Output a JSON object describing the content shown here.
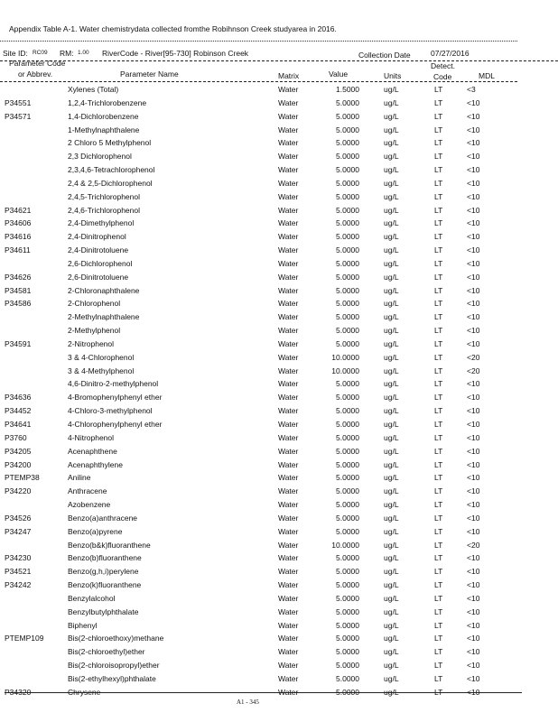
{
  "title": "Appendix Table A-1. Water chemistrydata collected fromthe Robihnson Creek studyarea in 2016.",
  "site": {
    "site_id_label": "Site ID:",
    "site_id": "RC09",
    "rm_label": "RM:",
    "rm": "1.00",
    "river_code": "RiverCode - River[95-730] Robinson Creek",
    "collection_date_label": "Collection Date",
    "collection_date": "07/27/2016"
  },
  "headers": {
    "code_line1": "Parameter Code",
    "code_line2": "or Abbrev.",
    "name": "Parameter Name",
    "matrix": "Matrix",
    "value": "Value",
    "units": "Units",
    "detect_line1": "Detect.",
    "detect_line2": "Code",
    "mdl": "MDL"
  },
  "rows": [
    [
      "",
      "Xylenes (Total)",
      "Water",
      "1.5000",
      "ug/L",
      "LT",
      "<3"
    ],
    [
      "P34551",
      "1,2,4-Trichlorobenzene",
      "Water",
      "5.0000",
      "ug/L",
      "LT",
      "<10"
    ],
    [
      "P34571",
      "1,4-Dichlorobenzene",
      "Water",
      "5.0000",
      "ug/L",
      "LT",
      "<10"
    ],
    [
      "",
      "1-Methylnaphthalene",
      "Water",
      "5.0000",
      "ug/L",
      "LT",
      "<10"
    ],
    [
      "",
      "2 Chloro 5 Methylphenol",
      "Water",
      "5.0000",
      "ug/L",
      "LT",
      "<10"
    ],
    [
      "",
      "2,3 Dichlorophenol",
      "Water",
      "5.0000",
      "ug/L",
      "LT",
      "<10"
    ],
    [
      "",
      "2,3,4,6-Tetrachlorophenol",
      "Water",
      "5.0000",
      "ug/L",
      "LT",
      "<10"
    ],
    [
      "",
      "2,4 & 2,5-Dichlorophenol",
      "Water",
      "5.0000",
      "ug/L",
      "LT",
      "<10"
    ],
    [
      "",
      "2,4,5-Trichlorophenol",
      "Water",
      "5.0000",
      "ug/L",
      "LT",
      "<10"
    ],
    [
      "P34621",
      "2,4,6-Trichlorophenol",
      "Water",
      "5.0000",
      "ug/L",
      "LT",
      "<10"
    ],
    [
      "P34606",
      "2,4-Dimethylphenol",
      "Water",
      "5.0000",
      "ug/L",
      "LT",
      "<10"
    ],
    [
      "P34616",
      "2,4-Dinitrophenol",
      "Water",
      "5.0000",
      "ug/L",
      "LT",
      "<10"
    ],
    [
      "P34611",
      "2,4-Dinitrotoluene",
      "Water",
      "5.0000",
      "ug/L",
      "LT",
      "<10"
    ],
    [
      "",
      "2,6-Dichlorophenol",
      "Water",
      "5.0000",
      "ug/L",
      "LT",
      "<10"
    ],
    [
      "P34626",
      "2,6-Dinitrotoluene",
      "Water",
      "5.0000",
      "ug/L",
      "LT",
      "<10"
    ],
    [
      "P34581",
      "2-Chloronaphthalene",
      "Water",
      "5.0000",
      "ug/L",
      "LT",
      "<10"
    ],
    [
      "P34586",
      "2-Chlorophenol",
      "Water",
      "5.0000",
      "ug/L",
      "LT",
      "<10"
    ],
    [
      "",
      "2-Methylnaphthalene",
      "Water",
      "5.0000",
      "ug/L",
      "LT",
      "<10"
    ],
    [
      "",
      "2-Methylphenol",
      "Water",
      "5.0000",
      "ug/L",
      "LT",
      "<10"
    ],
    [
      "P34591",
      "2-Nitrophenol",
      "Water",
      "5.0000",
      "ug/L",
      "LT",
      "<10"
    ],
    [
      "",
      "3 & 4-Chlorophenol",
      "Water",
      "10.0000",
      "ug/L",
      "LT",
      "<20"
    ],
    [
      "",
      "3 & 4-Methylphenol",
      "Water",
      "10.0000",
      "ug/L",
      "LT",
      "<20"
    ],
    [
      "",
      "4,6-Dinitro-2-methylphenol",
      "Water",
      "5.0000",
      "ug/L",
      "LT",
      "<10"
    ],
    [
      "P34636",
      "4-Bromophenylphenyl ether",
      "Water",
      "5.0000",
      "ug/L",
      "LT",
      "<10"
    ],
    [
      "P34452",
      "4-Chloro-3-methylphenol",
      "Water",
      "5.0000",
      "ug/L",
      "LT",
      "<10"
    ],
    [
      "P34641",
      "4-Chlorophenylphenyl ether",
      "Water",
      "5.0000",
      "ug/L",
      "LT",
      "<10"
    ],
    [
      "P3760",
      "4-Nitrophenol",
      "Water",
      "5.0000",
      "ug/L",
      "LT",
      "<10"
    ],
    [
      "P34205",
      "Acenaphthene",
      "Water",
      "5.0000",
      "ug/L",
      "LT",
      "<10"
    ],
    [
      "P34200",
      "Acenaphthylene",
      "Water",
      "5.0000",
      "ug/L",
      "LT",
      "<10"
    ],
    [
      "PTEMP38",
      "Aniline",
      "Water",
      "5.0000",
      "ug/L",
      "LT",
      "<10"
    ],
    [
      "P34220",
      "Anthracene",
      "Water",
      "5.0000",
      "ug/L",
      "LT",
      "<10"
    ],
    [
      "",
      "Azobenzene",
      "Water",
      "5.0000",
      "ug/L",
      "LT",
      "<10"
    ],
    [
      "P34526",
      "Benzo(a)anthracene",
      "Water",
      "5.0000",
      "ug/L",
      "LT",
      "<10"
    ],
    [
      "P34247",
      "Benzo(a)pyrene",
      "Water",
      "5.0000",
      "ug/L",
      "LT",
      "<10"
    ],
    [
      "",
      "Benzo(b&k)fluoranthene",
      "Water",
      "10.0000",
      "ug/L",
      "LT",
      "<20"
    ],
    [
      "P34230",
      "Benzo(b)fluoranthene",
      "Water",
      "5.0000",
      "ug/L",
      "LT",
      "<10"
    ],
    [
      "P34521",
      "Benzo(g,h,i)perylene",
      "Water",
      "5.0000",
      "ug/L",
      "LT",
      "<10"
    ],
    [
      "P34242",
      "Benzo(k)fluoranthene",
      "Water",
      "5.0000",
      "ug/L",
      "LT",
      "<10"
    ],
    [
      "",
      "Benzylalcohol",
      "Water",
      "5.0000",
      "ug/L",
      "LT",
      "<10"
    ],
    [
      "",
      "Benzylbutylphthalate",
      "Water",
      "5.0000",
      "ug/L",
      "LT",
      "<10"
    ],
    [
      "",
      "Biphenyl",
      "Water",
      "5.0000",
      "ug/L",
      "LT",
      "<10"
    ],
    [
      "PTEMP109",
      "Bis(2-chloroethoxy)methane",
      "Water",
      "5.0000",
      "ug/L",
      "LT",
      "<10"
    ],
    [
      "",
      "Bis(2-chloroethyl)ether",
      "Water",
      "5.0000",
      "ug/L",
      "LT",
      "<10"
    ],
    [
      "",
      "Bis(2-chloroisopropyl)ether",
      "Water",
      "5.0000",
      "ug/L",
      "LT",
      "<10"
    ],
    [
      "",
      "Bis(2-ethylhexyl)phthalate",
      "Water",
      "5.0000",
      "ug/L",
      "LT",
      "<10"
    ],
    [
      "P34320",
      "Chrysene",
      "Water",
      "5.0000",
      "ug/L",
      "LT",
      "<10"
    ]
  ],
  "page_number": "A1 - 345"
}
